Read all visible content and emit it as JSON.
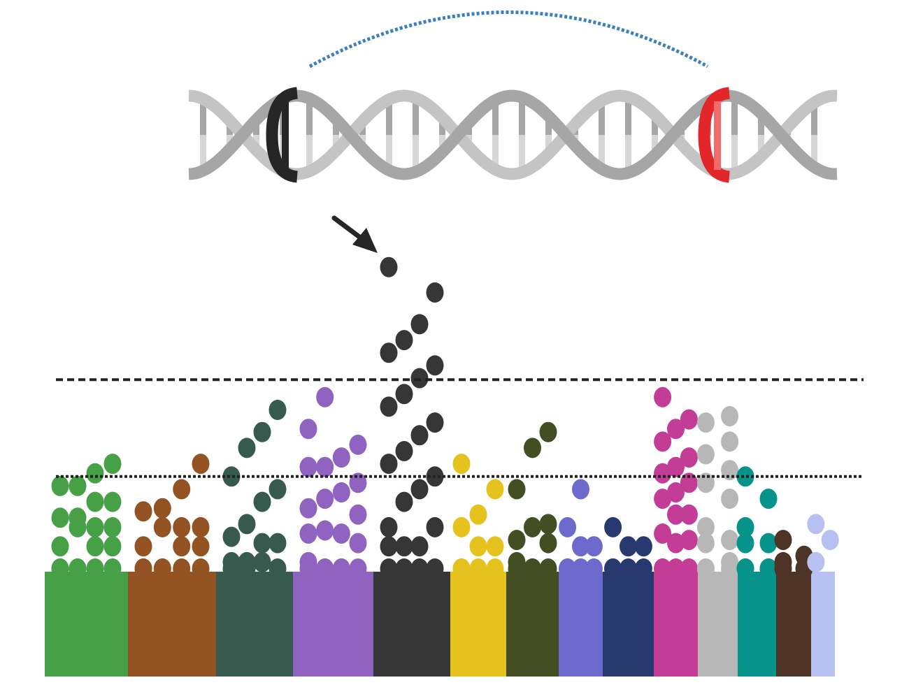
{
  "title": "",
  "colors": {
    "strand_dark": "#a6a6a6",
    "strand_light": "#c4c4c4",
    "rung_light": "#d6d6d6",
    "highlight_black": "#262626",
    "highlight_red": "#e3262a",
    "highlight_red_light": "#f26a6a",
    "arc": "#3a7fc1",
    "arrow": "#262626",
    "threshold_line": "#222222"
  },
  "chart_data": {
    "type": "scatter",
    "title": "",
    "xlabel": "",
    "ylabel": "",
    "ylim": [
      0,
      10
    ],
    "thresholds": [
      {
        "style": "dashed",
        "value": 6.05
      },
      {
        "style": "dotted",
        "value": 3.0
      }
    ],
    "groups": [
      {
        "color": "#46a046",
        "values": [
          0.1,
          0.1,
          0.1,
          0.1,
          0.1,
          0.1,
          0.8,
          0.8,
          0.8,
          1.4,
          1.4,
          1.4,
          1.7,
          1.7,
          2.2,
          2.2,
          2.7,
          2.7,
          3.1,
          3.4
        ]
      },
      {
        "color": "#935322",
        "values": [
          0.1,
          0.1,
          0.1,
          0.1,
          0.1,
          0.1,
          0.8,
          0.8,
          0.8,
          1.4,
          1.4,
          1.4,
          1.9,
          2.0,
          2.6,
          3.4
        ]
      },
      {
        "color": "#365b4e",
        "values": [
          0.3,
          0.3,
          0.3,
          0.1,
          0.1,
          0.1,
          0.9,
          0.9,
          1.1,
          1.5,
          2.2,
          2.6,
          3.0,
          3.9,
          4.4,
          5.1
        ]
      },
      {
        "color": "#8f63bf",
        "values": [
          0.3,
          0.1,
          0.1,
          0.1,
          0.1,
          0.1,
          0.1,
          0.9,
          1.2,
          1.3,
          1.2,
          1.8,
          2.0,
          2.3,
          2.5,
          2.8,
          3.3,
          3.3,
          3.6,
          4.0,
          4.5,
          5.5
        ]
      },
      {
        "color": "#363636",
        "values": [
          0.1,
          0.1,
          0.1,
          0.1,
          0.8,
          0.8,
          0.8,
          1.4,
          1.4,
          2.2,
          2.6,
          3.0,
          3.4,
          3.8,
          4.3,
          4.7,
          5.2,
          5.6,
          6.1,
          6.5,
          6.9,
          7.3,
          7.8,
          8.8,
          9.6
        ]
      },
      {
        "color": "#e6c21f",
        "values": [
          0.1,
          0.1,
          0.1,
          0.1,
          0.8,
          0.8,
          1.4,
          1.8,
          2.6,
          3.4
        ]
      },
      {
        "color": "#434e22",
        "values": [
          0.3,
          0.1,
          0.1,
          0.1,
          0.1,
          0.9,
          1.0,
          1.4,
          1.5,
          2.6,
          3.9,
          4.4
        ]
      },
      {
        "color": "#6d6acd",
        "values": [
          0.1,
          0.1,
          0.1,
          0.1,
          0.8,
          0.8,
          1.4,
          2.6
        ]
      },
      {
        "color": "#283970",
        "values": [
          0.1,
          0.1,
          0.1,
          0.1,
          0.8,
          0.8,
          1.4
        ]
      },
      {
        "color": "#c33c96",
        "values": [
          0.1,
          0.1,
          0.1,
          0.1,
          0.9,
          1.0,
          1.2,
          1.8,
          1.8,
          2.3,
          2.5,
          2.8,
          3.1,
          3.3,
          3.6,
          4.1,
          4.5,
          4.8,
          5.5
        ]
      },
      {
        "color": "#b7b7b7",
        "values": [
          0.1,
          0.1,
          0.1,
          0.3,
          0.9,
          1.0,
          1.4,
          2.3,
          2.8,
          3.2,
          3.7,
          4.1,
          4.7,
          4.9
        ]
      },
      {
        "color": "#069389",
        "values": [
          0.1,
          0.1,
          0.1,
          0.1,
          0.9,
          0.9,
          1.4,
          2.3,
          3.0
        ]
      },
      {
        "color": "#4e3427",
        "values": [
          0.1,
          0.1,
          0.3,
          0.5,
          1.0
        ]
      },
      {
        "color": "#b7c1f1",
        "values": [
          0.3,
          1.0,
          1.5
        ]
      }
    ]
  }
}
